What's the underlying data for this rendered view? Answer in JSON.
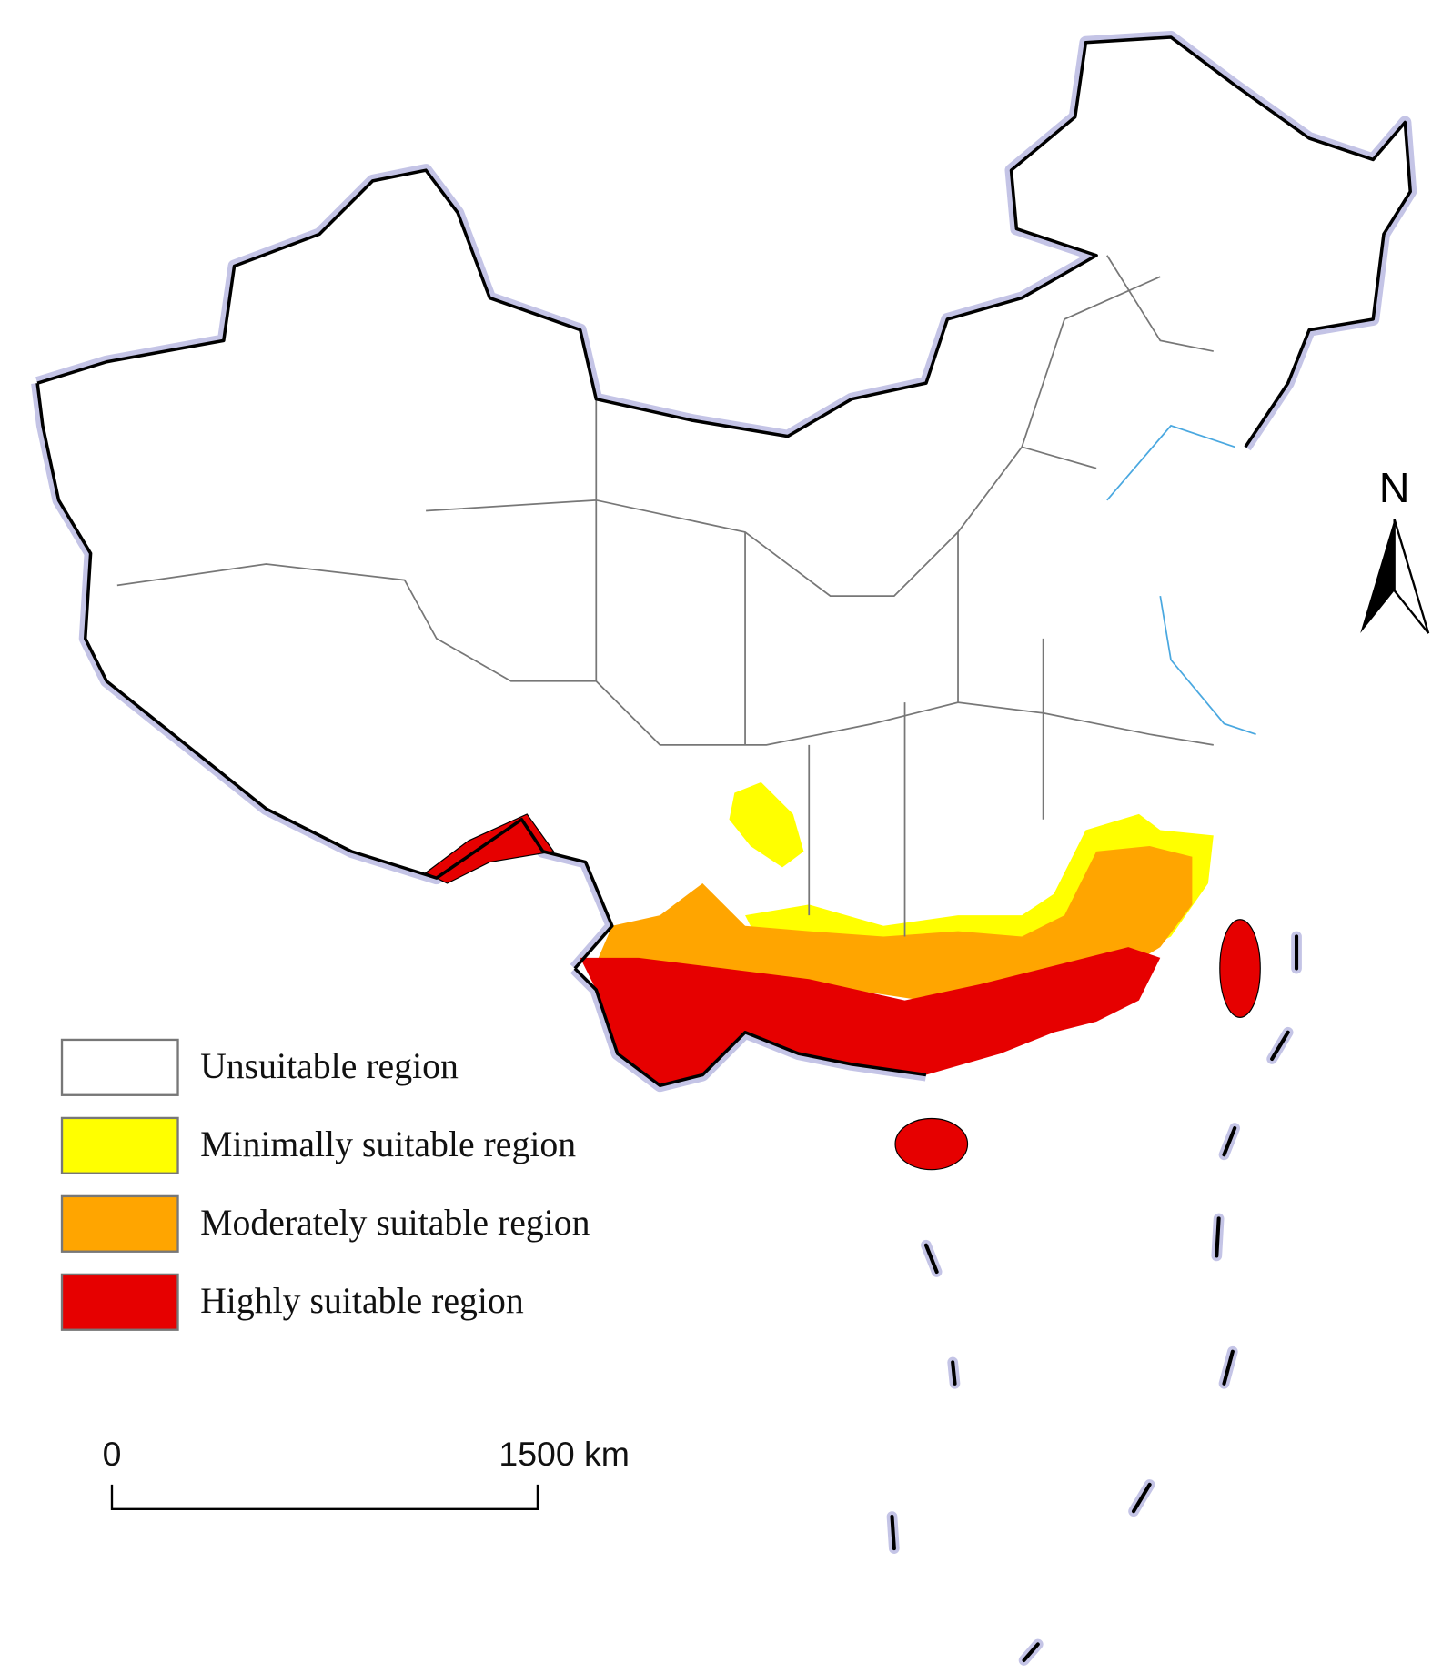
{
  "legend": {
    "items": [
      {
        "label": "Unsuitable region",
        "color": "#ffffff"
      },
      {
        "label": "Minimally suitable region",
        "color": "#ffff00"
      },
      {
        "label": "Moderately suitable region",
        "color": "#ffa500"
      },
      {
        "label": "Highly suitable region",
        "color": "#e60000"
      }
    ]
  },
  "north_arrow": {
    "label": "N"
  },
  "scale_bar": {
    "labels": [
      "0",
      "1500 km"
    ]
  }
}
